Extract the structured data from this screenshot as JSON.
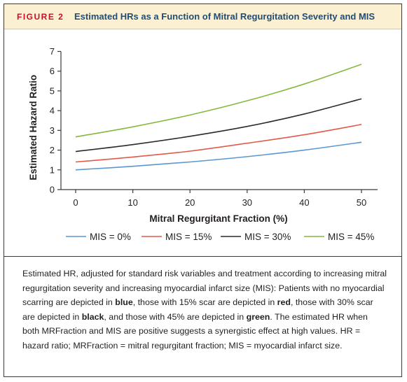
{
  "figure": {
    "label": "FIGURE 2",
    "title": "Estimated HRs as a Function of Mitral Regurgitation Severity and MIS"
  },
  "chart_data": {
    "type": "line",
    "xlabel": "Mitral Regurgitant Fraction (%)",
    "ylabel": "Estimated Hazard Ratio",
    "xlim": [
      0,
      50
    ],
    "ylim": [
      0,
      7
    ],
    "x_ticks": [
      "0",
      "10",
      "20",
      "30",
      "40",
      "50"
    ],
    "y_ticks": [
      "0",
      "1",
      "2",
      "3",
      "4",
      "5",
      "6",
      "7"
    ],
    "grid": false,
    "legend_position": "bottom",
    "x": [
      0,
      10,
      20,
      30,
      40,
      50
    ],
    "series": [
      {
        "name": "MIS = 0%",
        "color": "#5b97cf",
        "values": [
          1.0,
          1.18,
          1.4,
          1.67,
          2.0,
          2.4
        ]
      },
      {
        "name": "MIS = 15%",
        "color": "#e25a48",
        "values": [
          1.4,
          1.65,
          1.95,
          2.35,
          2.78,
          3.3
        ]
      },
      {
        "name": "MIS = 30%",
        "color": "#2b2b2b",
        "values": [
          1.93,
          2.28,
          2.7,
          3.2,
          3.83,
          4.6
        ]
      },
      {
        "name": "MIS = 45%",
        "color": "#86b83e",
        "values": [
          2.67,
          3.18,
          3.78,
          4.5,
          5.35,
          6.35
        ]
      }
    ]
  },
  "caption": {
    "part1": "Estimated HR, adjusted for standard risk variables and treatment according to increasing mitral regurgitation severity and increasing myocardial infarct size (MIS): Patients with no myocardial scarring are depicted in ",
    "blue": "blue",
    "part2": ", those with 15% scar are depicted in ",
    "red": "red",
    "part3": ", those with 30% scar are depicted in ",
    "black": "black",
    "part4": ", and those with 45% are depicted in ",
    "green": "green",
    "part5": ". The estimated HR when both MRFraction and MIS are positive suggests a synergistic effect at high values. HR = hazard ratio; MRFraction = mitral regurgitant fraction; MIS = myocardial infarct size."
  }
}
